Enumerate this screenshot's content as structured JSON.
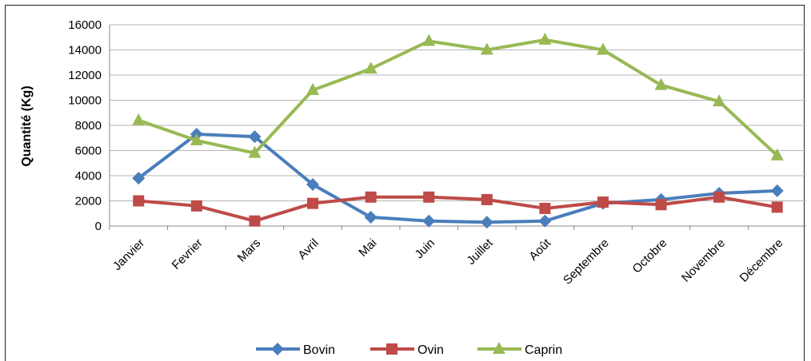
{
  "chart_data": {
    "type": "line",
    "ylabel": "Quantité (Kg)",
    "ylim": [
      0,
      16000
    ],
    "yticks": [
      0,
      2000,
      4000,
      6000,
      8000,
      10000,
      12000,
      14000,
      16000
    ],
    "grid": true,
    "legend_position": "bottom",
    "categories": [
      "Janvier",
      "Fevrier",
      "Mars",
      "Avril",
      "Mai",
      "Juin",
      "Juillet",
      "Août",
      "Septembre",
      "Octobre",
      "Novembre",
      "Décembre"
    ],
    "series": [
      {
        "name": "Bovin",
        "color": "#4a7ebb",
        "marker": "diamond",
        "values": [
          3800,
          7300,
          7100,
          3300,
          700,
          400,
          300,
          400,
          1800,
          2100,
          2600,
          2800
        ]
      },
      {
        "name": "Ovin",
        "color": "#be4b48",
        "marker": "square",
        "values": [
          2000,
          1600,
          400,
          1800,
          2300,
          2300,
          2100,
          1400,
          1900,
          1700,
          2300,
          1500
        ]
      },
      {
        "name": "Caprin",
        "color": "#98b954",
        "marker": "triangle",
        "values": [
          8400,
          6800,
          5800,
          10800,
          12500,
          14700,
          14000,
          14800,
          14000,
          11200,
          9900,
          5600
        ]
      }
    ]
  }
}
